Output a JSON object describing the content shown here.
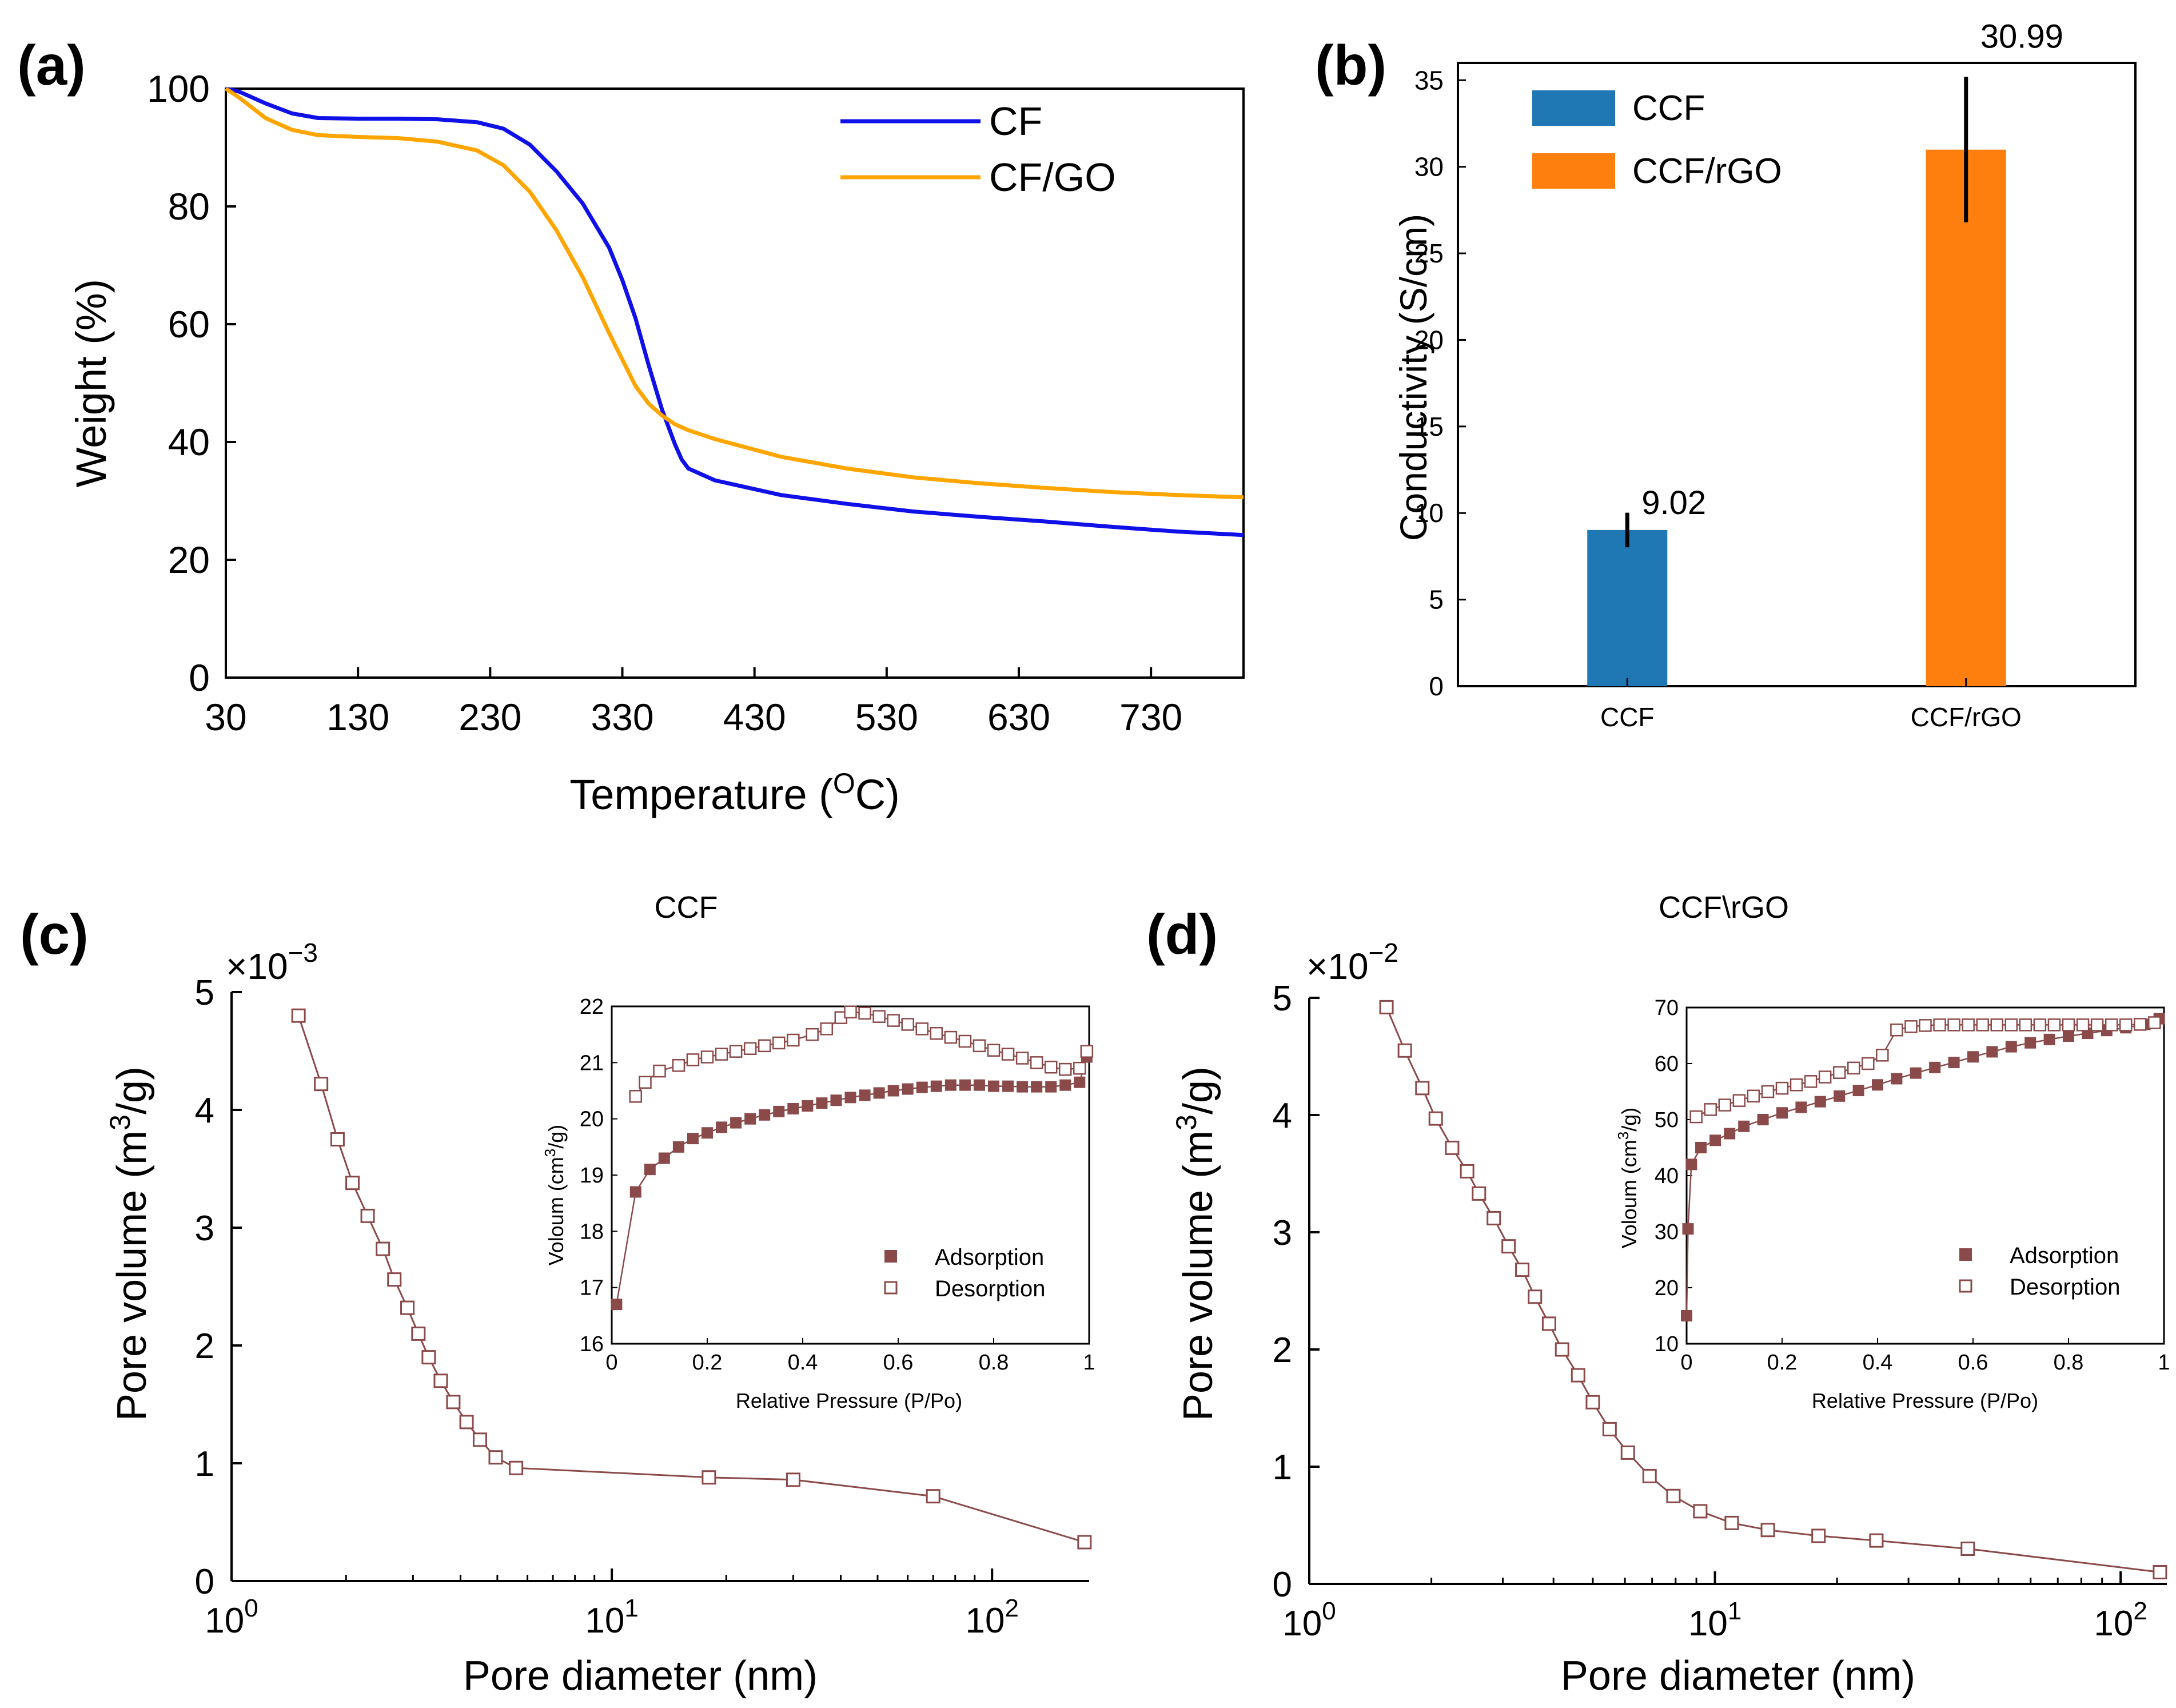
{
  "panels": {
    "a": {
      "label": "(a)",
      "xlabel": "Temperature (",
      "xlabel_sup": "O",
      "xlabel_end": "C)",
      "ylabel": "Weight (%)",
      "xticks": [
        "30",
        "130",
        "230",
        "330",
        "430",
        "530",
        "630",
        "730"
      ],
      "yticks": [
        "0",
        "20",
        "40",
        "60",
        "80",
        "100"
      ],
      "legend": [
        "CF",
        "CF/GO"
      ]
    },
    "b": {
      "label": "(b)",
      "ylabel": "Conductivity (S/cm)",
      "yticks": [
        "0",
        "5",
        "10",
        "15",
        "20",
        "25",
        "30",
        "35"
      ],
      "legend": [
        "CCF",
        "CCF/rGO"
      ],
      "value_labels": [
        "9.02",
        "30.99"
      ]
    },
    "c": {
      "label": "(c)",
      "title": "CCF",
      "multiplier_base": "×10",
      "multiplier_exp": "−3",
      "xlabel": "Pore diameter (nm)",
      "ylabel_pre": "Pore volume (m",
      "ylabel_sup": "3",
      "ylabel_post": "/g)",
      "inset_xlabel": "Relative Pressure (P/Po)",
      "inset_ylabel_pre": "Voloum (cm",
      "inset_ylabel_sup": "3",
      "inset_ylabel_post": "/g)",
      "inset_legend": [
        "Adsorption",
        "Desorption"
      ]
    },
    "d": {
      "label": "(d)",
      "title": "CCF\\rGO",
      "multiplier_base": "×10",
      "multiplier_exp": "−2",
      "xlabel": "Pore diameter (nm)",
      "ylabel_pre": "Pore volume (m",
      "ylabel_sup": "3",
      "ylabel_post": "/g)",
      "inset_xlabel": "Relative Pressure (P/Po)",
      "inset_ylabel_pre": "Voloum (cm",
      "inset_ylabel_sup": "3",
      "inset_ylabel_post": "/g)",
      "inset_legend": [
        "Adsorption",
        "Desorption"
      ]
    }
  },
  "chart_data": [
    {
      "id": "a",
      "type": "line",
      "xlabel": "Temperature (oC)",
      "ylabel": "Weight (%)",
      "xlim": [
        30,
        800
      ],
      "ylim": [
        0,
        100
      ],
      "colors": {
        "CF": "#1010e8",
        "CF/GO": "#ffa500"
      },
      "series": [
        {
          "name": "CF",
          "x": [
            30,
            40,
            60,
            80,
            100,
            130,
            160,
            190,
            220,
            240,
            260,
            280,
            300,
            320,
            330,
            340,
            350,
            360,
            370,
            375,
            380,
            385,
            400,
            450,
            500,
            550,
            600,
            650,
            700,
            750,
            800
          ],
          "y": [
            100,
            99.5,
            97.5,
            95.8,
            95.0,
            94.9,
            94.9,
            94.8,
            94.3,
            93.2,
            90.5,
            86.0,
            80.5,
            73.0,
            67.5,
            61.0,
            53.0,
            45.5,
            39.5,
            37.0,
            35.5,
            35.0,
            33.5,
            31.0,
            29.5,
            28.2,
            27.3,
            26.5,
            25.6,
            24.8,
            24.2
          ]
        },
        {
          "name": "CF/GO",
          "x": [
            30,
            40,
            60,
            80,
            100,
            130,
            160,
            190,
            220,
            240,
            260,
            280,
            300,
            320,
            330,
            340,
            350,
            360,
            370,
            380,
            400,
            450,
            500,
            550,
            600,
            650,
            700,
            750,
            800
          ],
          "y": [
            100,
            98.5,
            95.0,
            93.0,
            92.1,
            91.8,
            91.6,
            91.0,
            89.5,
            87.0,
            82.5,
            76.0,
            68.0,
            58.5,
            54.0,
            49.5,
            46.5,
            44.5,
            43.0,
            42.0,
            40.5,
            37.5,
            35.5,
            34.0,
            33.0,
            32.2,
            31.5,
            31.0,
            30.6
          ]
        }
      ]
    },
    {
      "id": "b",
      "type": "bar",
      "ylabel": "Conductivity (S/cm)",
      "ylim": [
        0,
        36
      ],
      "categories": [
        "CCF",
        "CCF/rGO"
      ],
      "values": [
        9.02,
        30.99
      ],
      "errors": [
        1.0,
        4.2
      ],
      "colors": [
        "#1f77b4",
        "#ff7f0e"
      ]
    },
    {
      "id": "c",
      "type": "line",
      "title": "CCF",
      "xlabel": "Pore diameter (nm)",
      "ylabel": "Pore volume (m3/g)",
      "xscale": "log",
      "xlim": [
        1,
        180
      ],
      "ylim": [
        0,
        5
      ],
      "yticks": [
        1,
        2,
        3,
        4,
        5
      ],
      "y_multiplier": "1e-3",
      "color": "#8b4a4a",
      "series": [
        {
          "name": "pore volume",
          "x": [
            1.5,
            1.72,
            1.9,
            2.08,
            2.28,
            2.5,
            2.68,
            2.9,
            3.1,
            3.3,
            3.55,
            3.83,
            4.15,
            4.5,
            4.95,
            5.6,
            18,
            30,
            70,
            175
          ],
          "y": [
            4.8,
            4.22,
            3.75,
            3.38,
            3.1,
            2.82,
            2.56,
            2.32,
            2.1,
            1.9,
            1.7,
            1.52,
            1.35,
            1.2,
            1.05,
            0.96,
            0.88,
            0.86,
            0.72,
            0.33
          ]
        }
      ],
      "inset": {
        "xlabel": "Relative Pressure (P/Po)",
        "ylabel": "Voloum (cm3/g)",
        "xlim": [
          0,
          1
        ],
        "ylim": [
          16,
          22
        ],
        "xticks": [
          0,
          0.2,
          0.4,
          0.6,
          0.8,
          1
        ],
        "yticks": [
          16,
          17,
          18,
          19,
          20,
          21,
          22
        ],
        "series": [
          {
            "name": "Adsorption",
            "marker": "filled-square",
            "x": [
              0.01,
              0.05,
              0.08,
              0.11,
              0.14,
              0.17,
              0.2,
              0.23,
              0.26,
              0.29,
              0.32,
              0.35,
              0.38,
              0.41,
              0.44,
              0.47,
              0.5,
              0.53,
              0.56,
              0.59,
              0.62,
              0.65,
              0.68,
              0.71,
              0.74,
              0.77,
              0.8,
              0.83,
              0.86,
              0.89,
              0.92,
              0.95,
              0.98,
              0.995
            ],
            "y": [
              16.7,
              18.7,
              19.1,
              19.3,
              19.5,
              19.65,
              19.75,
              19.85,
              19.93,
              20.0,
              20.07,
              20.13,
              20.18,
              20.23,
              20.28,
              20.33,
              20.38,
              20.42,
              20.46,
              20.5,
              20.53,
              20.56,
              20.58,
              20.6,
              20.6,
              20.6,
              20.58,
              20.58,
              20.57,
              20.57,
              20.57,
              20.6,
              20.65,
              21.1
            ]
          },
          {
            "name": "Desorption",
            "marker": "open-square",
            "x": [
              0.05,
              0.07,
              0.1,
              0.14,
              0.17,
              0.2,
              0.23,
              0.26,
              0.29,
              0.32,
              0.35,
              0.38,
              0.42,
              0.45,
              0.48,
              0.5,
              0.53,
              0.56,
              0.59,
              0.62,
              0.65,
              0.68,
              0.71,
              0.74,
              0.77,
              0.8,
              0.83,
              0.86,
              0.89,
              0.92,
              0.95,
              0.98,
              0.995
            ],
            "y": [
              20.4,
              20.65,
              20.85,
              20.95,
              21.05,
              21.1,
              21.15,
              21.2,
              21.25,
              21.3,
              21.35,
              21.4,
              21.5,
              21.6,
              21.8,
              21.9,
              21.88,
              21.82,
              21.75,
              21.68,
              21.6,
              21.52,
              21.45,
              21.38,
              21.3,
              21.22,
              21.15,
              21.08,
              21.0,
              20.92,
              20.88,
              20.9,
              21.2
            ]
          }
        ]
      }
    },
    {
      "id": "d",
      "type": "line",
      "title": "CCF\\rGO",
      "xlabel": "Pore diameter (nm)",
      "ylabel": "Pore volume (m3/g)",
      "xscale": "log",
      "xlim": [
        1,
        130
      ],
      "ylim": [
        0,
        5
      ],
      "yticks": [
        1,
        2,
        3,
        4,
        5
      ],
      "y_multiplier": "1e-2",
      "color": "#8b4a4a",
      "series": [
        {
          "name": "pore volume",
          "x": [
            1.55,
            1.72,
            1.9,
            2.05,
            2.25,
            2.45,
            2.62,
            2.85,
            3.1,
            3.35,
            3.6,
            3.9,
            4.2,
            4.6,
            5.0,
            5.5,
            6.1,
            6.9,
            7.9,
            9.2,
            11,
            13.5,
            18,
            25,
            42,
            125
          ],
          "y": [
            4.92,
            4.55,
            4.23,
            3.97,
            3.72,
            3.52,
            3.33,
            3.12,
            2.88,
            2.68,
            2.45,
            2.22,
            2.0,
            1.78,
            1.55,
            1.32,
            1.12,
            0.92,
            0.75,
            0.62,
            0.52,
            0.46,
            0.41,
            0.37,
            0.3,
            0.1
          ]
        }
      ],
      "inset": {
        "xlabel": "Relative Pressure (P/Po)",
        "ylabel": "Voloum (cm3/g)",
        "xlim": [
          0,
          1
        ],
        "ylim": [
          10,
          70
        ],
        "xticks": [
          0,
          0.2,
          0.4,
          0.6,
          0.8,
          1
        ],
        "yticks": [
          10,
          20,
          30,
          40,
          50,
          60,
          70
        ],
        "series": [
          {
            "name": "Adsorption",
            "marker": "filled-square",
            "x": [
              0.0,
              0.003,
              0.01,
              0.03,
              0.06,
              0.09,
              0.12,
              0.16,
              0.2,
              0.24,
              0.28,
              0.32,
              0.36,
              0.4,
              0.44,
              0.48,
              0.52,
              0.56,
              0.6,
              0.64,
              0.68,
              0.72,
              0.76,
              0.8,
              0.84,
              0.88,
              0.92,
              0.96,
              0.99
            ],
            "y": [
              15,
              30.5,
              42,
              45,
              46.3,
              47.5,
              48.8,
              50,
              51.2,
              52.2,
              53.2,
              54.2,
              55.2,
              56.2,
              57.3,
              58.3,
              59.3,
              60.2,
              61.2,
              62.1,
              63,
              63.7,
              64.3,
              64.9,
              65.4,
              65.9,
              66.4,
              67,
              68
            ]
          },
          {
            "name": "Desorption",
            "marker": "open-square",
            "x": [
              0.02,
              0.05,
              0.08,
              0.11,
              0.14,
              0.17,
              0.2,
              0.23,
              0.26,
              0.29,
              0.32,
              0.35,
              0.38,
              0.41,
              0.44,
              0.47,
              0.5,
              0.53,
              0.56,
              0.59,
              0.62,
              0.65,
              0.68,
              0.71,
              0.74,
              0.77,
              0.8,
              0.83,
              0.86,
              0.89,
              0.92,
              0.95,
              0.98
            ],
            "y": [
              50.5,
              51.8,
              52.6,
              53.4,
              54.2,
              55,
              55.6,
              56.2,
              56.8,
              57.6,
              58.4,
              59.2,
              60,
              61.5,
              66,
              66.6,
              66.8,
              66.9,
              66.9,
              66.9,
              66.9,
              66.9,
              66.9,
              66.9,
              66.9,
              66.9,
              66.9,
              66.9,
              66.9,
              66.9,
              66.9,
              67,
              67.3
            ]
          }
        ]
      }
    }
  ]
}
